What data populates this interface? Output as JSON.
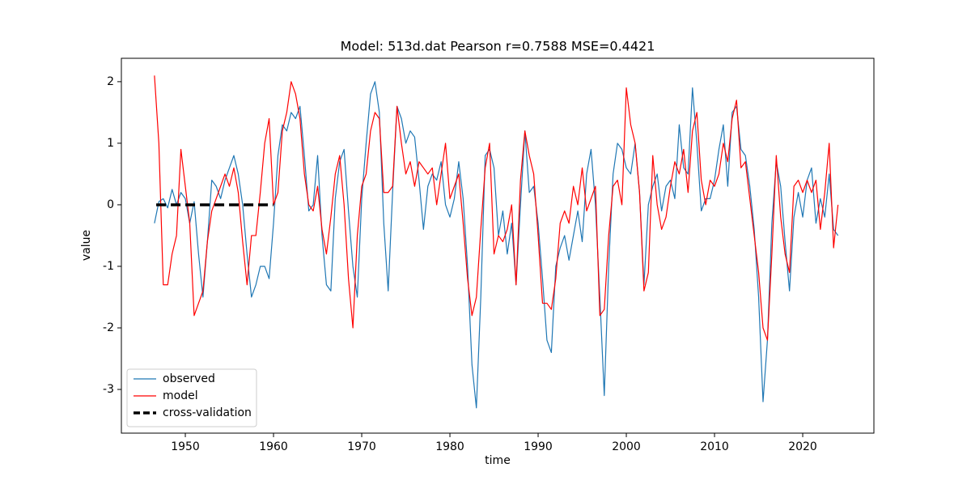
{
  "chart_data": {
    "type": "line",
    "title": "Model: 513d.dat  Pearson r=0.7588  MSE=0.4421",
    "x_label": "time",
    "y_label": "value",
    "x": [
      1946.5,
      1947,
      1947.5,
      1948,
      1948.5,
      1949,
      1949.5,
      1950,
      1950.5,
      1951,
      1951.5,
      1952,
      1952.5,
      1953,
      1953.5,
      1954,
      1954.5,
      1955,
      1955.5,
      1956,
      1956.5,
      1957,
      1957.5,
      1958,
      1958.5,
      1959,
      1959.5,
      1960,
      1960.5,
      1961,
      1961.5,
      1962,
      1962.5,
      1963,
      1963.5,
      1964,
      1964.5,
      1965,
      1965.5,
      1966,
      1966.5,
      1967,
      1967.5,
      1968,
      1968.5,
      1969,
      1969.5,
      1970,
      1970.5,
      1971,
      1971.5,
      1972,
      1972.5,
      1973,
      1973.5,
      1974,
      1974.5,
      1975,
      1975.5,
      1976,
      1976.5,
      1977,
      1977.5,
      1978,
      1978.5,
      1979,
      1979.5,
      1980,
      1980.5,
      1981,
      1981.5,
      1982,
      1982.5,
      1983,
      1983.5,
      1984,
      1984.5,
      1985,
      1985.5,
      1986,
      1986.5,
      1987,
      1987.5,
      1988,
      1988.5,
      1989,
      1989.5,
      1990,
      1990.5,
      1991,
      1991.5,
      1992,
      1992.5,
      1993,
      1993.5,
      1994,
      1994.5,
      1995,
      1995.5,
      1996,
      1996.5,
      1997,
      1997.5,
      1998,
      1998.5,
      1999,
      1999.5,
      2000,
      2000.5,
      2001,
      2001.5,
      2002,
      2002.5,
      2003,
      2003.5,
      2004,
      2004.5,
      2005,
      2005.5,
      2006,
      2006.5,
      2007,
      2007.5,
      2008,
      2008.5,
      2009,
      2009.5,
      2010,
      2010.5,
      2011,
      2011.5,
      2012,
      2012.5,
      2013,
      2013.5,
      2014,
      2014.5,
      2015,
      2015.5,
      2016,
      2016.5,
      2017,
      2017.5,
      2018,
      2018.5,
      2019,
      2019.5,
      2020,
      2020.5,
      2021,
      2021.5,
      2022,
      2022.5,
      2023,
      2023.5,
      2024
    ],
    "series": [
      {
        "name": "observed",
        "color": "#1f77b4",
        "width": 1.2,
        "values": [
          -0.3,
          0.05,
          0.1,
          -0.05,
          0.25,
          0.0,
          0.2,
          0.1,
          -0.3,
          0.05,
          -0.8,
          -1.5,
          -0.6,
          0.4,
          0.3,
          0.1,
          0.4,
          0.6,
          0.8,
          0.5,
          0.0,
          -0.8,
          -1.5,
          -1.3,
          -1.0,
          -1.0,
          -1.2,
          -0.3,
          0.8,
          1.3,
          1.2,
          1.5,
          1.4,
          1.6,
          0.8,
          -0.1,
          0.0,
          0.8,
          -0.5,
          -1.3,
          -1.4,
          0.1,
          0.7,
          0.9,
          -0.1,
          -1.0,
          -1.5,
          0.1,
          1.0,
          1.8,
          2.0,
          1.5,
          -0.3,
          -1.4,
          0.2,
          1.6,
          1.4,
          1.0,
          1.2,
          1.1,
          0.4,
          -0.4,
          0.3,
          0.5,
          0.4,
          0.7,
          0.0,
          -0.2,
          0.1,
          0.7,
          0.1,
          -1.0,
          -2.6,
          -3.3,
          -1.5,
          0.8,
          0.9,
          0.6,
          -0.5,
          -0.1,
          -0.8,
          -0.3,
          -1.3,
          0.0,
          1.2,
          0.2,
          0.3,
          -0.3,
          -1.2,
          -2.2,
          -2.4,
          -1.0,
          -0.7,
          -0.5,
          -0.9,
          -0.5,
          -0.1,
          -0.6,
          0.5,
          0.9,
          0.0,
          -1.5,
          -3.1,
          -1.0,
          0.5,
          1.0,
          0.9,
          0.6,
          0.5,
          1.0,
          0.2,
          -1.3,
          0.0,
          0.3,
          0.5,
          -0.1,
          0.3,
          0.4,
          0.1,
          1.3,
          0.6,
          0.5,
          1.9,
          1.0,
          -0.1,
          0.1,
          0.1,
          0.4,
          0.9,
          1.3,
          0.3,
          1.5,
          1.6,
          0.9,
          0.8,
          0.3,
          -0.4,
          -1.5,
          -3.2,
          -2.2,
          -0.3,
          0.7,
          0.3,
          -0.6,
          -1.4,
          -0.2,
          0.2,
          -0.2,
          0.4,
          0.6,
          -0.3,
          0.1,
          -0.2,
          0.5,
          -0.4,
          -0.5
        ]
      },
      {
        "name": "model",
        "color": "#ff0000",
        "width": 1.2,
        "values": [
          2.1,
          1.0,
          -1.3,
          -1.3,
          -0.8,
          -0.5,
          0.9,
          0.3,
          -0.3,
          -1.8,
          -1.6,
          -1.4,
          -0.6,
          -0.1,
          0.1,
          0.3,
          0.5,
          0.3,
          0.6,
          0.2,
          -0.6,
          -1.3,
          -0.5,
          -0.5,
          0.2,
          1.0,
          1.4,
          0.0,
          0.2,
          1.2,
          1.5,
          2.0,
          1.8,
          1.4,
          0.5,
          0.0,
          -0.1,
          0.3,
          -0.4,
          -0.8,
          -0.2,
          0.5,
          0.8,
          0.0,
          -1.2,
          -2.0,
          -0.5,
          0.3,
          0.5,
          1.2,
          1.5,
          1.4,
          0.2,
          0.2,
          0.3,
          1.6,
          1.0,
          0.5,
          0.7,
          0.3,
          0.7,
          0.6,
          0.5,
          0.6,
          0.0,
          0.5,
          1.0,
          0.1,
          0.3,
          0.5,
          -0.3,
          -1.2,
          -1.8,
          -1.5,
          -0.4,
          0.6,
          1.0,
          -0.8,
          -0.5,
          -0.6,
          -0.4,
          0.0,
          -1.3,
          0.4,
          1.2,
          0.8,
          0.5,
          -0.5,
          -1.6,
          -1.6,
          -1.7,
          -1.2,
          -0.3,
          -0.1,
          -0.3,
          0.3,
          0.0,
          0.6,
          -0.1,
          0.1,
          0.3,
          -1.8,
          -1.7,
          -0.5,
          0.3,
          0.4,
          0.0,
          1.9,
          1.3,
          1.0,
          0.2,
          -1.4,
          -1.1,
          0.8,
          0.0,
          -0.4,
          -0.2,
          0.3,
          0.7,
          0.5,
          0.9,
          0.2,
          1.2,
          1.5,
          0.4,
          0.0,
          0.4,
          0.3,
          0.5,
          1.0,
          0.7,
          1.4,
          1.7,
          0.6,
          0.7,
          0.1,
          -0.5,
          -1.1,
          -2.0,
          -2.2,
          -0.8,
          0.8,
          -0.2,
          -0.8,
          -1.1,
          0.3,
          0.4,
          0.2,
          0.4,
          0.2,
          0.4,
          -0.4,
          0.2,
          1.0,
          -0.7,
          0.0
        ]
      },
      {
        "name": "cross-validation",
        "color": "#000000",
        "width": 3.5,
        "dashed": true,
        "x": [
          1946.7,
          1960
        ],
        "values": [
          0,
          0
        ]
      }
    ],
    "xlim": [
      1942.75,
      2028.07
    ],
    "ylim": [
      -3.71,
      2.38
    ],
    "xticks": [
      1950,
      1960,
      1970,
      1980,
      1990,
      2000,
      2010,
      2020
    ],
    "yticks": [
      -3,
      -2,
      -1,
      0,
      1,
      2
    ],
    "legend": "lower left"
  }
}
